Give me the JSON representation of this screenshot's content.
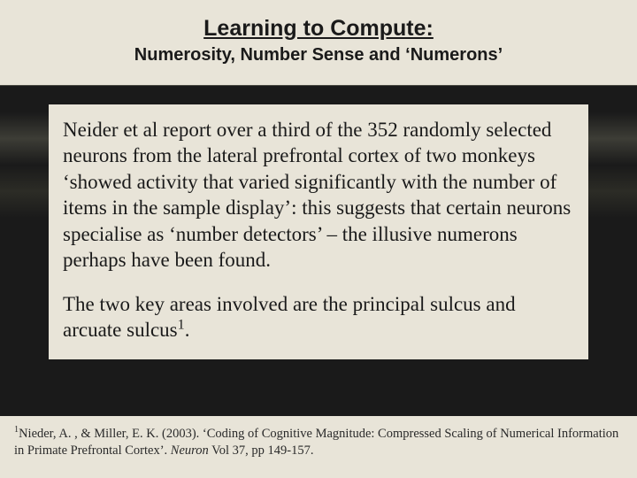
{
  "colors": {
    "page_bg": "#e8e4d8",
    "dark_band_base": "#1a1a1a",
    "dark_band_highlight": "#3d3d36",
    "text": "#1a1a1a",
    "footnote_text": "#2a2a2a"
  },
  "typography": {
    "title_main_fontsize": 25,
    "title_sub_fontsize": 20,
    "body_fontsize": 23,
    "footnote_fontsize": 14.5,
    "title_family": "Arial",
    "body_family": "Times New Roman"
  },
  "title": {
    "main": "Learning to Compute:",
    "sub": "Numerosity, Number Sense and ‘Numerons’"
  },
  "body": {
    "p1": "Neider et al report over a third of the 352 randomly selected neurons from the lateral prefrontal cortex of two monkeys ‘showed activity that varied significantly with the number of items in the sample display’: this suggests that certain neurons specialise as ‘number detectors’ – the illusive numerons perhaps have been found.",
    "p2_pre": "The two key areas involved are the principal sulcus and arcuate sulcus",
    "p2_sup": "1",
    "p2_post": "."
  },
  "footnote": {
    "sup": "1",
    "authors": "Nieder, A. , & Miller, E. K.  (2003).  ‘Coding of Cognitive Magnitude: Compressed Scaling of Numerical Information in Primate Prefrontal Cortex’.  ",
    "journal": "Neuron",
    "tail": " Vol 37, pp 149-157."
  }
}
